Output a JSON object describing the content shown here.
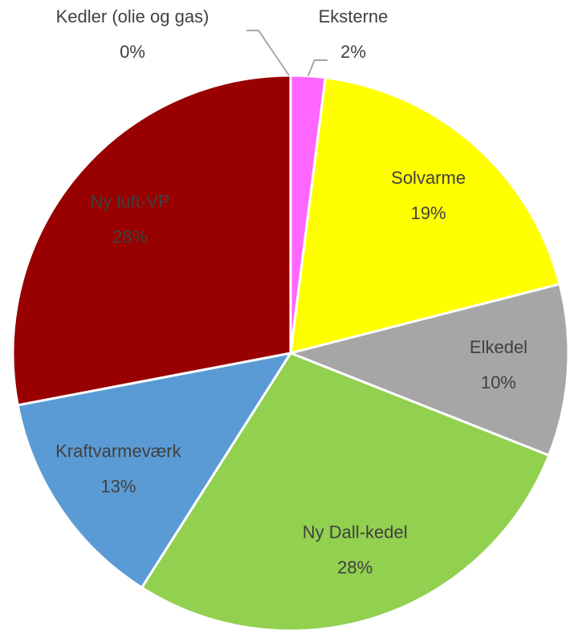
{
  "chart_data": {
    "type": "pie",
    "categories": [
      "Eksterne",
      "Solvarme",
      "Elkedel",
      "Ny Dall-kedel",
      "Kraftvarmeværk",
      "Ny luft-VP",
      "Kedler (olie og gas)"
    ],
    "values": [
      2,
      19,
      10,
      28,
      13,
      28,
      0
    ],
    "value_labels": [
      "2%",
      "19%",
      "10%",
      "28%",
      "13%",
      "28%",
      "0%"
    ],
    "colors": [
      "#ff66ff",
      "#ffff00",
      "#a6a6a6",
      "#92d050",
      "#5b9bd5",
      "#990000",
      "#ffc000"
    ]
  }
}
